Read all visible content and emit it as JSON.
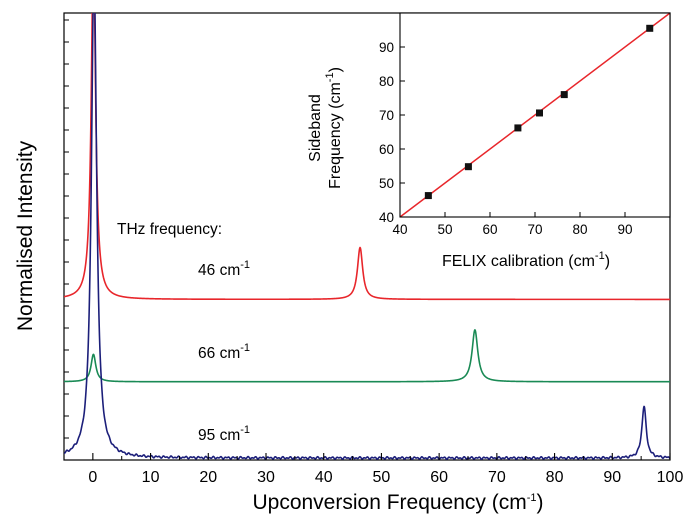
{
  "chart_data": [
    {
      "type": "line",
      "xlabel": "Upconversion Frequency (cm",
      "xlabel_sup": "-1",
      "xlabel_close": ")",
      "ylabel": "Normalised Intensity",
      "xlim": [
        -5,
        100
      ],
      "xticks": [
        0,
        10,
        20,
        30,
        40,
        50,
        60,
        70,
        80,
        90,
        100
      ],
      "annotation": "THz frequency:",
      "unit": "cm",
      "unit_sup": "-1",
      "series": [
        {
          "name": "46",
          "color": "#e8262b",
          "baseline": 0.52,
          "peaks": [
            {
              "x": 0.1,
              "h": 1.15,
              "w": 0.45
            },
            {
              "x": 46.3,
              "h": 0.17,
              "w": 0.55
            }
          ]
        },
        {
          "name": "66",
          "color": "#1a8a55",
          "baseline": 0.25,
          "peaks": [
            {
              "x": 0.1,
              "h": 0.09,
              "w": 0.5
            },
            {
              "x": 66.2,
              "h": 0.17,
              "w": 0.6
            }
          ]
        },
        {
          "name": "95",
          "color": "#1c1f7a",
          "baseline": 0.0,
          "peaks": [
            {
              "x": 0.2,
              "h": 1.6,
              "w": 0.55
            },
            {
              "x": 95.5,
              "h": 0.17,
              "w": 0.45
            }
          ]
        }
      ]
    },
    {
      "type": "scatter",
      "xlabel": "FELIX calibration (cm",
      "xlabel_sup": "-1",
      "xlabel_close": ")",
      "ylabel_line1": "Sideband",
      "ylabel_line2": "Frequency (cm",
      "ylabel_sup": "-1",
      "ylabel_close": ")",
      "xlim": [
        40,
        100
      ],
      "ylim": [
        40,
        100
      ],
      "xticks": [
        40,
        50,
        60,
        70,
        80,
        90
      ],
      "yticks": [
        40,
        50,
        60,
        70,
        80,
        90
      ],
      "x": [
        46.3,
        55.2,
        66.2,
        71.0,
        76.5,
        95.5
      ],
      "y": [
        46.3,
        54.8,
        66.2,
        70.6,
        76.0,
        95.5
      ],
      "fit_line_color": "#e8262b",
      "marker_color": "#111111"
    }
  ]
}
